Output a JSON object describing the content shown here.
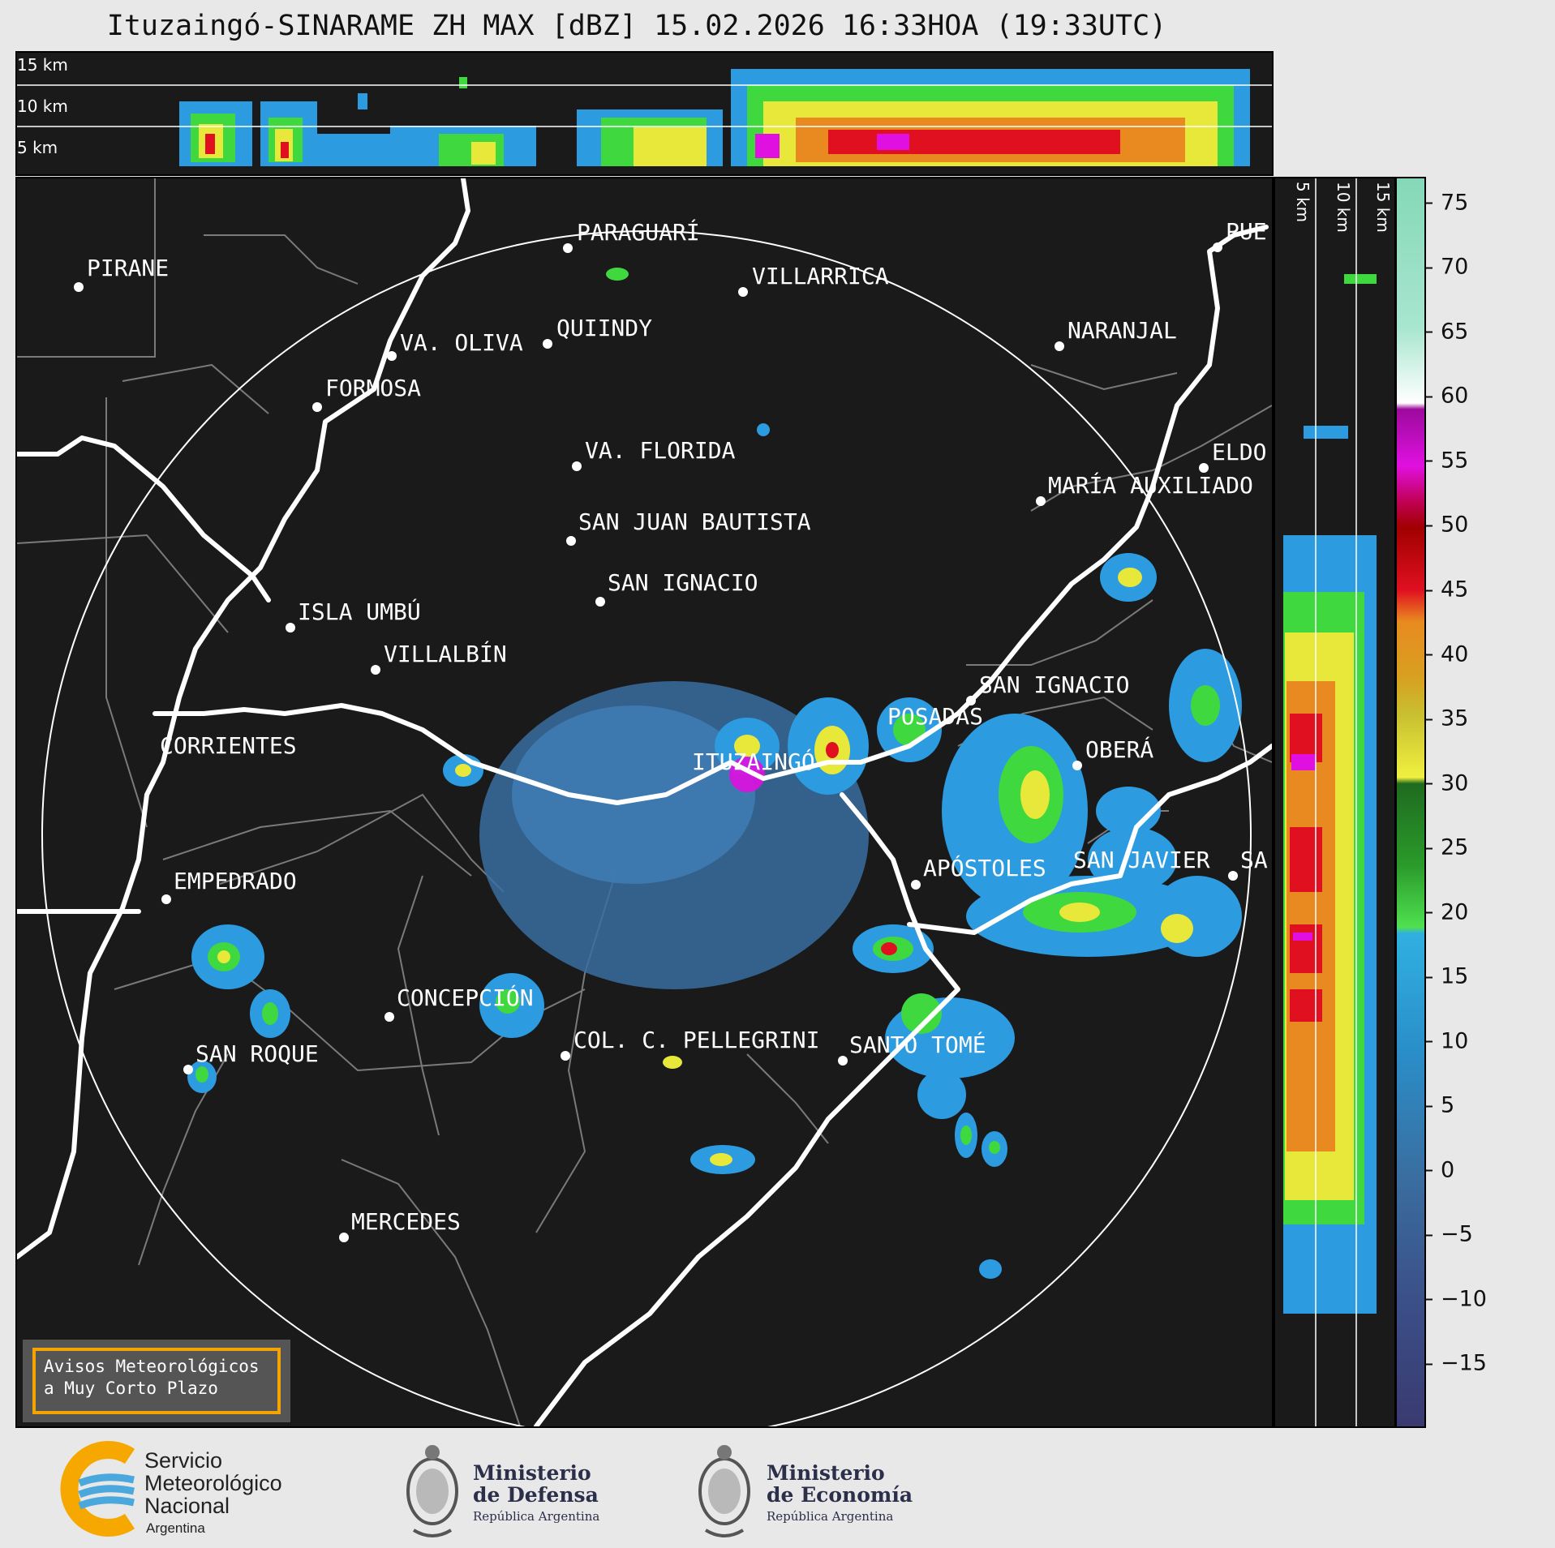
{
  "title": "Ituzaingó-SINARAME ZH MAX [dBZ] 15.02.2026 16:33HOA (19:33UTC)",
  "top_section": {
    "altitude_labels": [
      "15 km",
      "10 km",
      "5 km"
    ]
  },
  "right_section": {
    "altitude_labels": [
      "5 km",
      "10 km",
      "15 km"
    ]
  },
  "colorbar": {
    "unit": "dBZ",
    "range": [
      -20,
      77
    ],
    "ticks": [
      "75",
      "70",
      "65",
      "60",
      "55",
      "50",
      "45",
      "40",
      "35",
      "30",
      "25",
      "20",
      "15",
      "10",
      "5",
      "0",
      "−5",
      "−10",
      "−15"
    ]
  },
  "cities": [
    {
      "name": "PARAGUARÍ"
    },
    {
      "name": "VILLARRICA"
    },
    {
      "name": "PIRANE"
    },
    {
      "name": "QUIINDY"
    },
    {
      "name": "VA. OLIVA"
    },
    {
      "name": "NARANJAL"
    },
    {
      "name": "FORMOSA"
    },
    {
      "name": "PUE"
    },
    {
      "name": "VA. FLORIDA"
    },
    {
      "name": "ELDO"
    },
    {
      "name": "MARÍA AUXILIADO"
    },
    {
      "name": "SAN JUAN BAUTISTA"
    },
    {
      "name": "SAN IGNACIO"
    },
    {
      "name": "ISLA UMBÚ"
    },
    {
      "name": "VILLALBÍN"
    },
    {
      "name": "SAN IGNACIO"
    },
    {
      "name": "POSADAS"
    },
    {
      "name": "CORRIENTES"
    },
    {
      "name": "ITUZAINGÓ"
    },
    {
      "name": "OBERÁ"
    },
    {
      "name": "SAN JAVIER"
    },
    {
      "name": "SA"
    },
    {
      "name": "APÓSTOLES"
    },
    {
      "name": "EMPEDRADO"
    },
    {
      "name": "CONCEPCIÓN"
    },
    {
      "name": "COL. C. PELLEGRINI"
    },
    {
      "name": "SANTO TOMÉ"
    },
    {
      "name": "SAN ROQUE"
    },
    {
      "name": "MERCEDES"
    }
  ],
  "alert_box": {
    "line1": "Avisos Meteorológicos",
    "line2": "a Muy Corto Plazo"
  },
  "footer": {
    "smn_line1": "Servicio",
    "smn_line2": "Meteorológico",
    "smn_line3": "Nacional",
    "smn_country": "Argentina",
    "defensa_line1": "Ministerio",
    "defensa_line2": "de Defensa",
    "defensa_sub": "República Argentina",
    "economia_line1": "Ministerio",
    "economia_line2": "de Economía",
    "economia_sub": "República Argentina"
  },
  "colors": {
    "panel_bg": "#1a1a1a",
    "page_bg": "#e8e8e8",
    "border_line": "#ffffff",
    "province_line": "#7a7a7a",
    "alert_border": "#f5a300",
    "smn_orange": "#f6a800",
    "smn_blue": "#4aa8dc"
  }
}
